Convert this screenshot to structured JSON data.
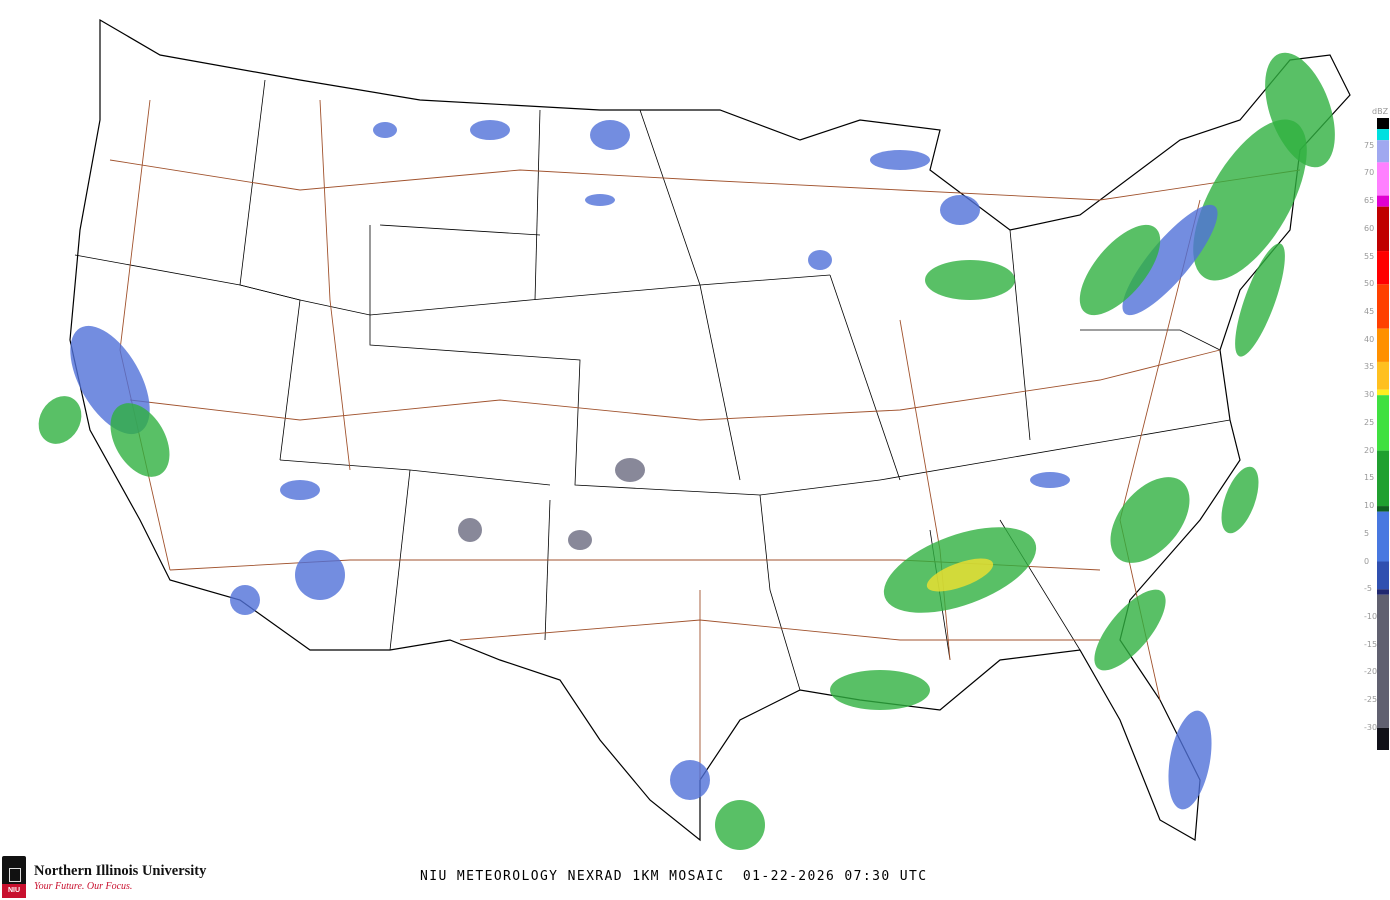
{
  "caption": "NIU METEOROLOGY NEXRAD 1KM MOSAIC  01-22-2026 07:30 UTC",
  "logo": {
    "name": "Northern Illinois University",
    "tagline": "Your Future. Our Focus.",
    "seal_text": "NIU"
  },
  "colorbar": {
    "unit": "dBZ",
    "labels": [
      "75",
      "70",
      "65",
      "60",
      "55",
      "50",
      "45",
      "40",
      "35",
      "30",
      "25",
      "20",
      "15",
      "10",
      "5",
      "0",
      "-5",
      "-10",
      "-15",
      "-20",
      "-25",
      "-30"
    ],
    "stops": [
      {
        "dbz": 80,
        "color": "#000000"
      },
      {
        "dbz": 78,
        "color": "#00e0e0"
      },
      {
        "dbz": 76,
        "color": "#a0a8f0"
      },
      {
        "dbz": 72,
        "color": "#ff80ff"
      },
      {
        "dbz": 66,
        "color": "#e000d0"
      },
      {
        "dbz": 64,
        "color": "#c00000"
      },
      {
        "dbz": 56,
        "color": "#ff0000"
      },
      {
        "dbz": 50,
        "color": "#ff4000"
      },
      {
        "dbz": 42,
        "color": "#ff9000"
      },
      {
        "dbz": 36,
        "color": "#ffc020"
      },
      {
        "dbz": 31,
        "color": "#ffee20"
      },
      {
        "dbz": 30,
        "color": "#40e040"
      },
      {
        "dbz": 20,
        "color": "#20a030"
      },
      {
        "dbz": 10,
        "color": "#106020"
      },
      {
        "dbz": 9,
        "color": "#4878e0"
      },
      {
        "dbz": 0,
        "color": "#3050b0"
      },
      {
        "dbz": -5,
        "color": "#202870"
      },
      {
        "dbz": -6,
        "color": "#606070"
      },
      {
        "dbz": -30,
        "color": "#101018"
      }
    ]
  },
  "colors": {
    "coast": "#000000",
    "roads": "#a0522d",
    "light": "#5070d8",
    "moderate": "#30b040",
    "heavy": "#f0e030",
    "trace": "#6a6a80"
  }
}
